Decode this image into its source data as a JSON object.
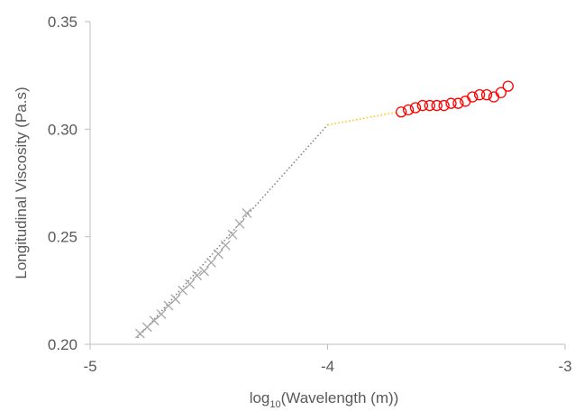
{
  "chart_data": {
    "type": "scatter",
    "title": "",
    "xlabel_main": "log",
    "xlabel_sub": "10",
    "xlabel_rest": "(Wavelength (m))",
    "ylabel": "Longitudinal Viscosity (Pa.s)",
    "xlim": [
      -5,
      -3
    ],
    "ylim": [
      0.2,
      0.35
    ],
    "x_ticks": [
      -5,
      -4,
      -3
    ],
    "x_tick_labels": [
      "-5",
      "-4",
      "-3"
    ],
    "y_ticks": [
      0.2,
      0.25,
      0.3,
      0.35
    ],
    "y_tick_labels": [
      "0.20",
      "0.25",
      "0.30",
      "0.35"
    ],
    "grid": false,
    "legend": "none",
    "series": [
      {
        "marker": "cross",
        "color": "#a6a6a6",
        "x": [
          -4.79,
          -4.76,
          -4.73,
          -4.7,
          -4.67,
          -4.64,
          -4.61,
          -4.58,
          -4.55,
          -4.52,
          -4.49,
          -4.46,
          -4.43,
          -4.4,
          -4.37,
          -4.34
        ],
        "y": [
          0.205,
          0.208,
          0.211,
          0.214,
          0.218,
          0.221,
          0.225,
          0.228,
          0.232,
          0.234,
          0.238,
          0.242,
          0.246,
          0.251,
          0.256,
          0.261
        ]
      },
      {
        "marker": "circle",
        "color": "#ff0000",
        "x": [
          -3.69,
          -3.66,
          -3.63,
          -3.6,
          -3.57,
          -3.54,
          -3.51,
          -3.48,
          -3.45,
          -3.42,
          -3.39,
          -3.36,
          -3.33,
          -3.3,
          -3.27,
          -3.24
        ],
        "y": [
          0.308,
          0.309,
          0.31,
          0.311,
          0.311,
          0.311,
          0.311,
          0.312,
          0.312,
          0.313,
          0.315,
          0.316,
          0.316,
          0.315,
          0.317,
          0.32
        ]
      }
    ],
    "lines": [
      {
        "style": "dotted",
        "color": "#7f7f7f",
        "x": [
          -4.8,
          -4.0
        ],
        "y": [
          0.203,
          0.302
        ]
      },
      {
        "style": "dotted",
        "color": "#ffc000",
        "x": [
          -4.0,
          -3.7
        ],
        "y": [
          0.302,
          0.308
        ]
      }
    ]
  }
}
